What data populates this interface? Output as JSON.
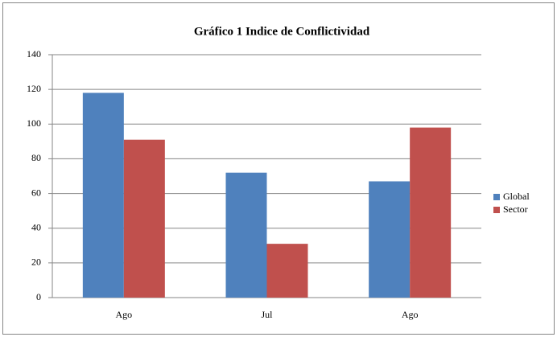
{
  "chart_data": {
    "type": "bar",
    "title": "Gráfico 1 Indice de Conflictividad",
    "categories": [
      "Ago",
      "Jul",
      "Ago"
    ],
    "series": [
      {
        "name": "Global",
        "color": "#4f81bd",
        "values": [
          118,
          72,
          67
        ]
      },
      {
        "name": "Sector",
        "color": "#c0504d",
        "values": [
          91,
          31,
          98
        ]
      }
    ],
    "ylim": [
      0,
      140
    ],
    "yticks": [
      0,
      20,
      40,
      60,
      80,
      100,
      120,
      140
    ],
    "grid": true,
    "legend": "right"
  }
}
